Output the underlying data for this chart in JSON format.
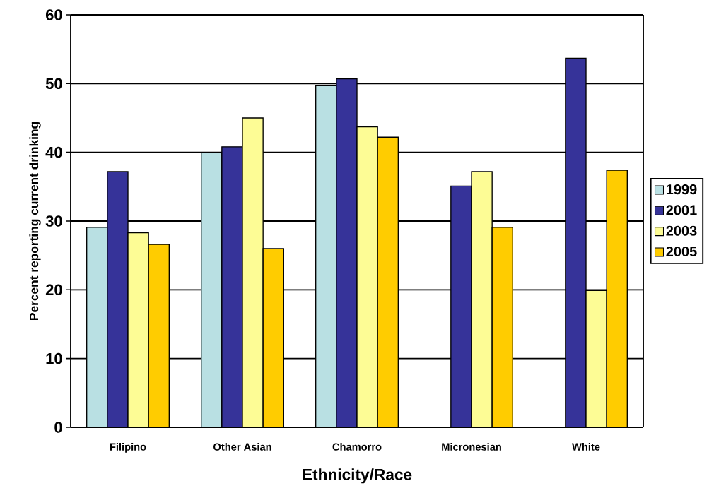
{
  "chart_data": {
    "type": "bar",
    "xlabel": "Ethnicity/Race",
    "ylabel": "Percent reporting current drinking",
    "categories": [
      "Filipino",
      "Other Asian",
      "Chamorro",
      "Micronesian",
      "White"
    ],
    "series": [
      {
        "name": "1999",
        "color": "#b9e0e3",
        "values": [
          29.1,
          40.0,
          49.7,
          null,
          null
        ]
      },
      {
        "name": "2001",
        "color": "#363399",
        "values": [
          37.2,
          40.8,
          50.7,
          35.1,
          53.7
        ]
      },
      {
        "name": "2003",
        "color": "#fdfc95",
        "values": [
          28.3,
          45.0,
          43.7,
          37.2,
          19.9
        ]
      },
      {
        "name": "2005",
        "color": "#ffcc00",
        "values": [
          26.6,
          26.0,
          42.2,
          29.1,
          37.4
        ]
      }
    ],
    "ylim": [
      0,
      60
    ],
    "yticks": [
      0,
      10,
      20,
      30,
      40,
      50,
      60
    ],
    "grid": "y",
    "legend": "right"
  }
}
